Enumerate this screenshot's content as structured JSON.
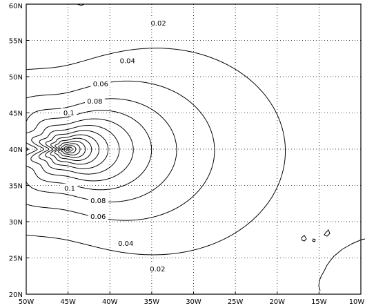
{
  "chart_data": {
    "type": "contour",
    "title": "",
    "xlabel": "",
    "ylabel": "",
    "xlim": [
      -50,
      -10
    ],
    "ylim": [
      20,
      60
    ],
    "grid": true,
    "x_ticks": [
      {
        "value": -50,
        "label": "50W"
      },
      {
        "value": -45,
        "label": "45W"
      },
      {
        "value": -40,
        "label": "40W"
      },
      {
        "value": -35,
        "label": "35W"
      },
      {
        "value": -30,
        "label": "30W"
      },
      {
        "value": -25,
        "label": "25W"
      },
      {
        "value": -20,
        "label": "20W"
      },
      {
        "value": -15,
        "label": "15W"
      },
      {
        "value": -10,
        "label": "10W"
      }
    ],
    "y_ticks": [
      {
        "value": 20,
        "label": "20N"
      },
      {
        "value": 25,
        "label": "25N"
      },
      {
        "value": 30,
        "label": "30N"
      },
      {
        "value": 35,
        "label": "35N"
      },
      {
        "value": 40,
        "label": "40N"
      },
      {
        "value": 45,
        "label": "45N"
      },
      {
        "value": 50,
        "label": "50N"
      },
      {
        "value": 55,
        "label": "55N"
      },
      {
        "value": 60,
        "label": "60N"
      }
    ],
    "field_center": {
      "lon": -45,
      "lat": 40
    },
    "contour_levels": [
      0.02,
      0.04,
      0.06,
      0.08,
      0.1,
      0.12,
      0.14,
      0.16,
      0.18,
      0.2,
      0.22,
      0.24,
      0.26,
      0.28,
      0.3
    ],
    "labels": [
      {
        "text": "0.02",
        "lon": -34.2,
        "lat": 57.4
      },
      {
        "text": "0.04",
        "lon": -37.9,
        "lat": 52.2
      },
      {
        "text": "0.06",
        "lon": -41.1,
        "lat": 49.0
      },
      {
        "text": "0.08",
        "lon": -41.8,
        "lat": 46.6
      },
      {
        "text": "0.1",
        "lon": -44.9,
        "lat": 45.0
      },
      {
        "text": "0.1",
        "lon": -44.8,
        "lat": 34.6
      },
      {
        "text": "0.08",
        "lon": -41.4,
        "lat": 32.9
      },
      {
        "text": "0.06",
        "lon": -41.4,
        "lat": 30.7
      },
      {
        "text": "0.04",
        "lon": -38.1,
        "lat": 27.0
      },
      {
        "text": "0.02",
        "lon": -34.3,
        "lat": 23.5
      }
    ],
    "coastline": true
  }
}
